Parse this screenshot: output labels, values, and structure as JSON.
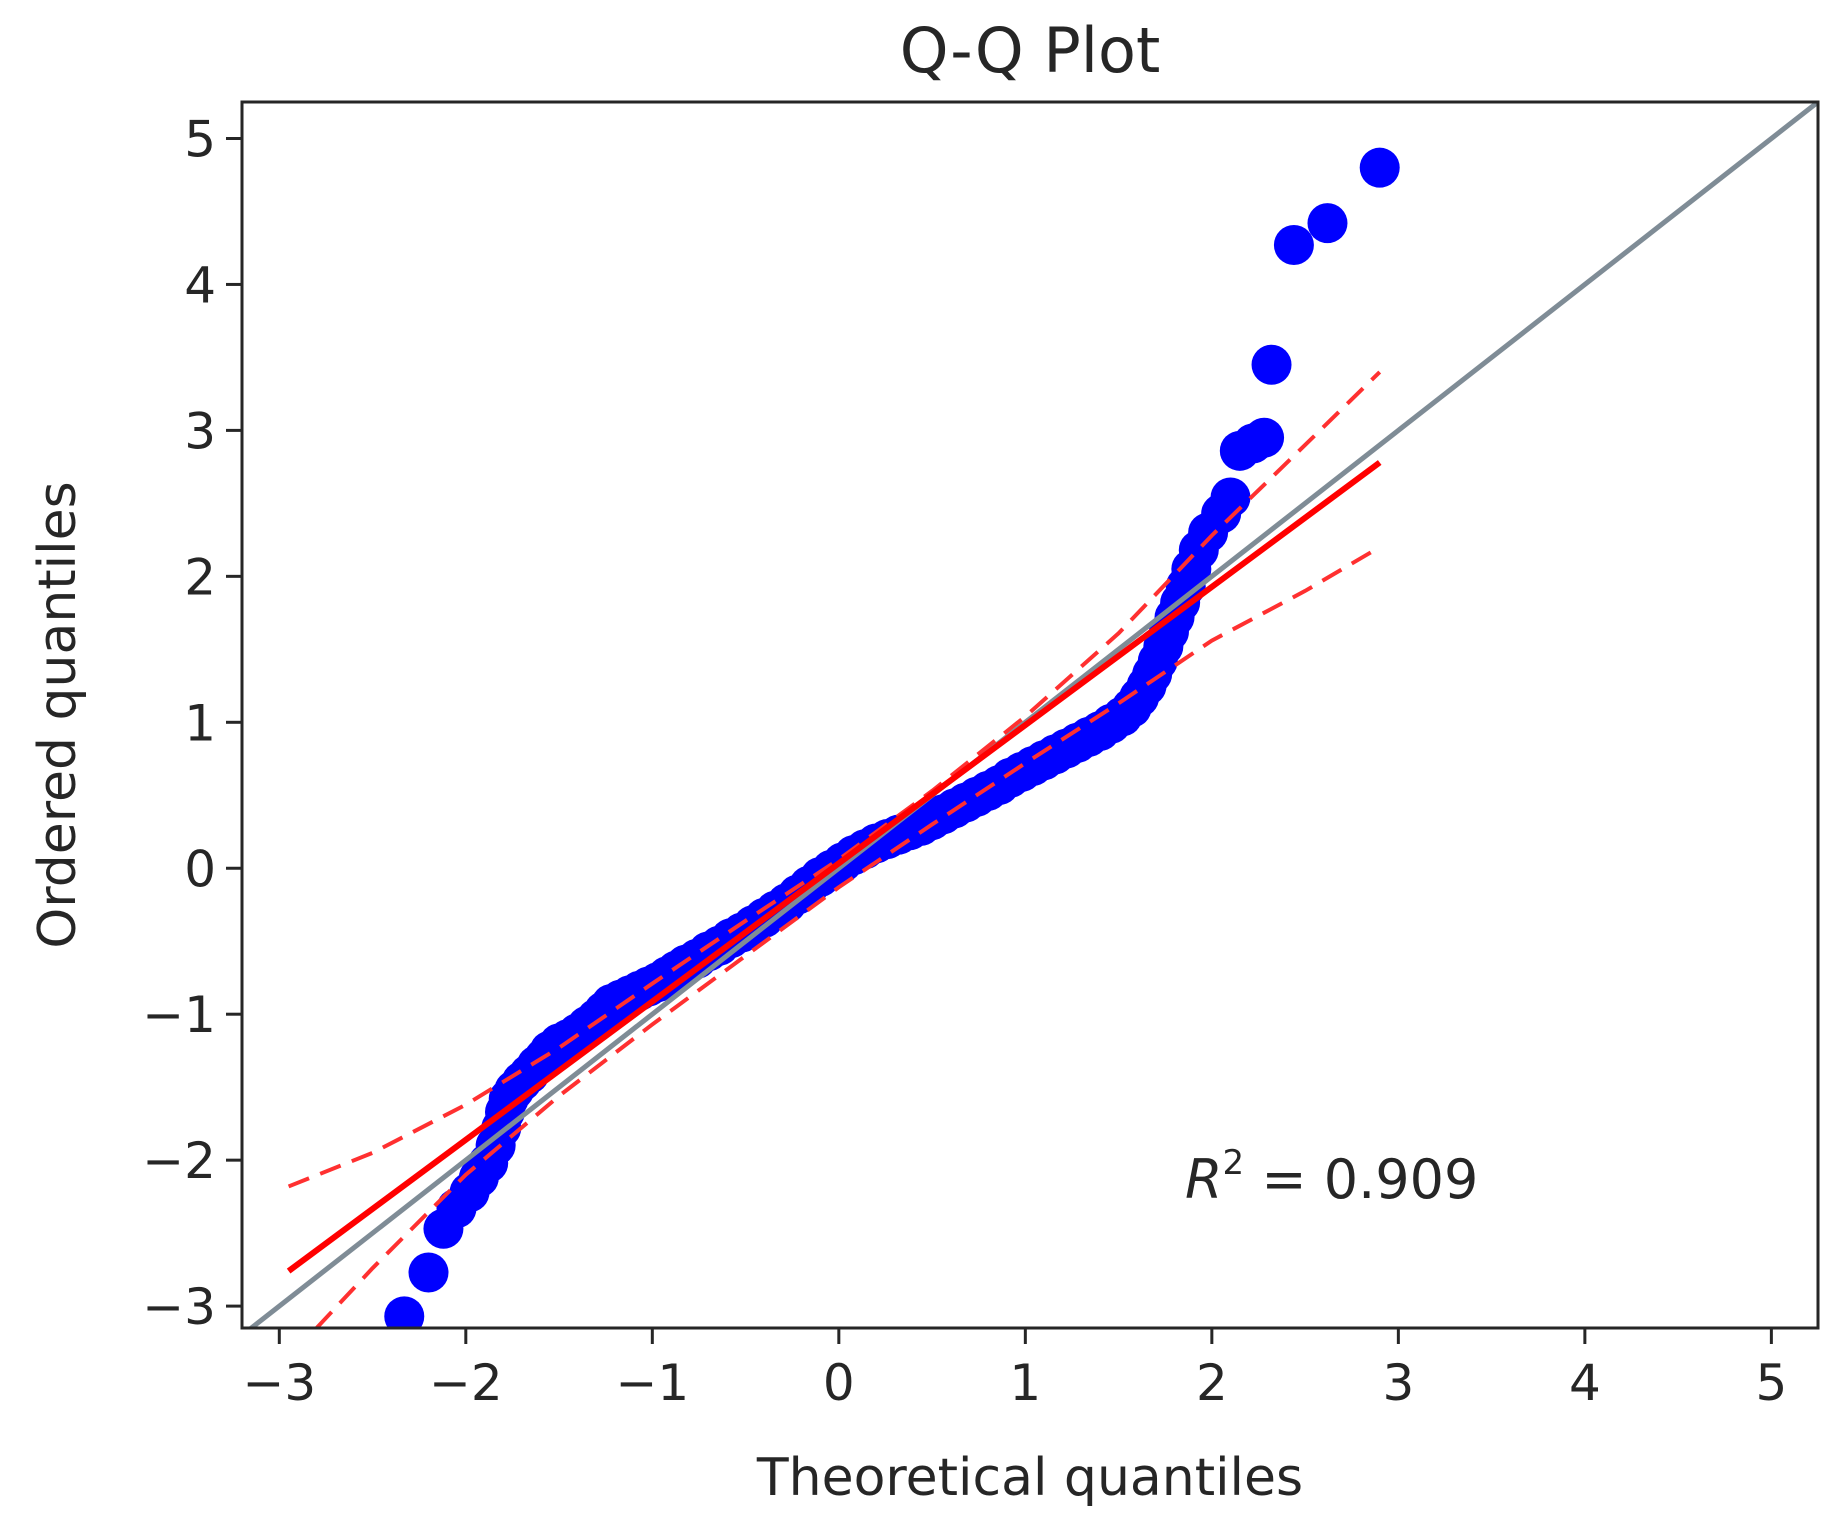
{
  "chart_data": {
    "type": "scatter",
    "title": "Q-Q Plot",
    "xlabel": "Theoretical quantiles",
    "ylabel": "Ordered quantiles",
    "xlim": [
      -3.2,
      5.25
    ],
    "ylim": [
      -3.15,
      5.25
    ],
    "xticks": [
      -3,
      -2,
      -1,
      0,
      1,
      2,
      3,
      4,
      5
    ],
    "yticks": [
      -3,
      -2,
      -1,
      0,
      1,
      2,
      3,
      4,
      5
    ],
    "grid": false,
    "annotation": {
      "symbol": "R",
      "superscript": "2",
      "text": " = 0.909"
    },
    "points": [
      [
        -2.33,
        -3.07
      ],
      [
        -2.2,
        -2.77
      ],
      [
        -2.12,
        -2.47
      ],
      [
        -2.05,
        -2.33
      ],
      [
        -1.98,
        -2.22
      ],
      [
        -1.93,
        -2.12
      ],
      [
        -1.88,
        -2.02
      ],
      [
        -1.84,
        -1.9
      ],
      [
        -1.81,
        -1.78
      ],
      [
        -1.79,
        -1.67
      ],
      [
        -1.77,
        -1.58
      ],
      [
        -1.74,
        -1.52
      ],
      [
        -1.7,
        -1.46
      ],
      [
        -1.66,
        -1.41
      ],
      [
        -1.62,
        -1.35
      ],
      [
        -1.58,
        -1.3
      ],
      [
        -1.55,
        -1.25
      ],
      [
        -1.5,
        -1.2
      ],
      [
        -1.45,
        -1.17
      ],
      [
        -1.4,
        -1.13
      ],
      [
        -1.35,
        -1.08
      ],
      [
        -1.3,
        -1.03
      ],
      [
        -1.26,
        -0.98
      ],
      [
        -1.22,
        -0.93
      ],
      [
        -1.17,
        -0.9
      ],
      [
        -1.12,
        -0.87
      ],
      [
        -1.07,
        -0.84
      ],
      [
        -1.02,
        -0.81
      ],
      [
        -0.97,
        -0.78
      ],
      [
        -0.92,
        -0.74
      ],
      [
        -0.87,
        -0.7
      ],
      [
        -0.82,
        -0.66
      ],
      [
        -0.76,
        -0.62
      ],
      [
        -0.7,
        -0.57
      ],
      [
        -0.64,
        -0.53
      ],
      [
        -0.58,
        -0.48
      ],
      [
        -0.52,
        -0.44
      ],
      [
        -0.46,
        -0.39
      ],
      [
        -0.4,
        -0.34
      ],
      [
        -0.34,
        -0.29
      ],
      [
        -0.28,
        -0.24
      ],
      [
        -0.22,
        -0.18
      ],
      [
        -0.16,
        -0.12
      ],
      [
        -0.1,
        -0.06
      ],
      [
        -0.04,
        -0.01
      ],
      [
        0.02,
        0.04
      ],
      [
        0.08,
        0.09
      ],
      [
        0.14,
        0.13
      ],
      [
        0.2,
        0.17
      ],
      [
        0.26,
        0.2
      ],
      [
        0.32,
        0.23
      ],
      [
        0.38,
        0.26
      ],
      [
        0.44,
        0.29
      ],
      [
        0.5,
        0.33
      ],
      [
        0.56,
        0.37
      ],
      [
        0.62,
        0.41
      ],
      [
        0.68,
        0.45
      ],
      [
        0.74,
        0.49
      ],
      [
        0.8,
        0.53
      ],
      [
        0.86,
        0.57
      ],
      [
        0.92,
        0.62
      ],
      [
        0.98,
        0.66
      ],
      [
        1.04,
        0.7
      ],
      [
        1.1,
        0.74
      ],
      [
        1.16,
        0.78
      ],
      [
        1.22,
        0.82
      ],
      [
        1.28,
        0.86
      ],
      [
        1.34,
        0.9
      ],
      [
        1.4,
        0.94
      ],
      [
        1.46,
        0.99
      ],
      [
        1.52,
        1.04
      ],
      [
        1.57,
        1.1
      ],
      [
        1.61,
        1.17
      ],
      [
        1.65,
        1.25
      ],
      [
        1.68,
        1.33
      ],
      [
        1.71,
        1.42
      ],
      [
        1.74,
        1.52
      ],
      [
        1.77,
        1.62
      ],
      [
        1.8,
        1.72
      ],
      [
        1.83,
        1.82
      ],
      [
        1.86,
        1.93
      ],
      [
        1.89,
        2.05
      ],
      [
        1.93,
        2.18
      ],
      [
        1.98,
        2.3
      ],
      [
        2.05,
        2.43
      ],
      [
        2.1,
        2.54
      ],
      [
        2.15,
        2.86
      ],
      [
        2.22,
        2.91
      ],
      [
        2.28,
        2.95
      ],
      [
        2.32,
        3.45
      ],
      [
        2.44,
        4.27
      ],
      [
        2.62,
        4.42
      ],
      [
        2.9,
        4.8
      ]
    ],
    "reference_line": {
      "x": [
        -3.2,
        5.25
      ],
      "y": [
        -3.2,
        5.25
      ]
    },
    "fit_line": {
      "x": [
        -2.95,
        2.9
      ],
      "y": [
        -2.76,
        2.78
      ]
    },
    "confidence_upper": [
      [
        -2.95,
        -2.18
      ],
      [
        -2.5,
        -1.95
      ],
      [
        -2.0,
        -1.62
      ],
      [
        -1.5,
        -1.23
      ],
      [
        -1.0,
        -0.79
      ],
      [
        -0.5,
        -0.36
      ],
      [
        0.0,
        0.06
      ],
      [
        0.5,
        0.53
      ],
      [
        1.0,
        1.04
      ],
      [
        1.5,
        1.61
      ],
      [
        2.0,
        2.28
      ],
      [
        2.5,
        2.9
      ],
      [
        2.9,
        3.4
      ]
    ],
    "confidence_lower": [
      [
        -2.8,
        -3.15
      ],
      [
        -2.5,
        -2.74
      ],
      [
        -2.0,
        -2.1
      ],
      [
        -1.5,
        -1.56
      ],
      [
        -1.0,
        -1.07
      ],
      [
        -0.5,
        -0.6
      ],
      [
        0.0,
        -0.13
      ],
      [
        0.5,
        0.3
      ],
      [
        1.0,
        0.72
      ],
      [
        1.5,
        1.13
      ],
      [
        2.0,
        1.56
      ],
      [
        2.5,
        1.9
      ],
      [
        2.9,
        2.2
      ]
    ]
  }
}
